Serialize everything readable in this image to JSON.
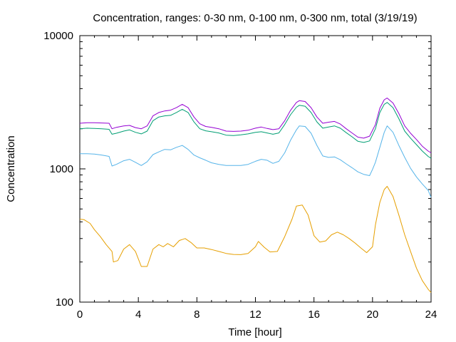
{
  "chart_data": {
    "type": "line",
    "title": "Concentration, ranges: 0-30 nm, 0-100 nm, 0-300 nm, total (3/19/19)",
    "xlabel": "Time [hour]",
    "ylabel": "Concentration",
    "xlim": [
      0,
      24
    ],
    "ylim": [
      100,
      10000
    ],
    "yscale": "log",
    "xticks": [
      0,
      4,
      8,
      12,
      16,
      20,
      24
    ],
    "xtick_labels": [
      "0",
      "4",
      "8",
      "12",
      "16",
      "20",
      "24"
    ],
    "yticks": [
      100,
      1000,
      10000
    ],
    "ytick_labels": [
      "100",
      "1000",
      "10000"
    ],
    "grid": false,
    "series": [
      {
        "color": "#e69f00",
        "x": [
          0,
          0.3,
          0.7,
          1.0,
          1.4,
          1.8,
          2.2,
          2.3,
          2.6,
          3.0,
          3.4,
          3.8,
          4.2,
          4.6,
          5.0,
          5.4,
          5.7,
          6.0,
          6.4,
          6.8,
          7.2,
          7.6,
          8.0,
          8.5,
          9.0,
          9.5,
          10.0,
          10.5,
          11.0,
          11.5,
          12.0,
          12.2,
          12.6,
          13.0,
          13.5,
          14.0,
          14.5,
          14.8,
          15.2,
          15.6,
          16.0,
          16.4,
          16.8,
          17.2,
          17.6,
          18.0,
          18.4,
          18.8,
          19.2,
          19.6,
          20.0,
          20.2,
          20.5,
          20.8,
          21.0,
          21.4,
          21.8,
          22.2,
          22.6,
          23.0,
          23.4,
          23.8,
          24.0
        ],
        "y": [
          420,
          415,
          390,
          350,
          310,
          270,
          240,
          200,
          205,
          250,
          270,
          240,
          185,
          185,
          250,
          270,
          260,
          275,
          260,
          290,
          300,
          280,
          255,
          255,
          248,
          240,
          232,
          228,
          227,
          232,
          260,
          285,
          258,
          238,
          240,
          310,
          420,
          525,
          535,
          450,
          315,
          282,
          288,
          320,
          335,
          320,
          300,
          278,
          255,
          235,
          260,
          380,
          560,
          700,
          740,
          620,
          450,
          320,
          240,
          180,
          145,
          125,
          118
        ]
      },
      {
        "color": "#56b4e9",
        "x": [
          0,
          0.5,
          1.0,
          1.5,
          2.0,
          2.2,
          2.5,
          3.0,
          3.4,
          3.8,
          4.2,
          4.6,
          5.0,
          5.4,
          5.8,
          6.2,
          6.6,
          7.0,
          7.4,
          7.8,
          8.2,
          8.6,
          9.0,
          9.5,
          10.0,
          10.5,
          11.0,
          11.5,
          12.0,
          12.4,
          12.8,
          13.2,
          13.6,
          14.0,
          14.4,
          14.8,
          15.0,
          15.4,
          15.8,
          16.2,
          16.6,
          17.0,
          17.4,
          17.8,
          18.2,
          18.6,
          19.0,
          19.4,
          19.8,
          20.0,
          20.2,
          20.5,
          20.8,
          21.0,
          21.4,
          21.8,
          22.2,
          22.6,
          23.0,
          23.4,
          23.8,
          24.0
        ],
        "y": [
          1300,
          1300,
          1290,
          1270,
          1240,
          1050,
          1080,
          1150,
          1180,
          1120,
          1060,
          1130,
          1280,
          1340,
          1400,
          1390,
          1450,
          1500,
          1400,
          1270,
          1210,
          1160,
          1110,
          1080,
          1060,
          1060,
          1060,
          1080,
          1140,
          1180,
          1160,
          1100,
          1140,
          1320,
          1640,
          1960,
          2100,
          2080,
          1850,
          1500,
          1250,
          1220,
          1230,
          1170,
          1090,
          1020,
          950,
          910,
          890,
          990,
          1120,
          1450,
          1880,
          2100,
          1880,
          1500,
          1220,
          1010,
          870,
          770,
          690,
          610
        ]
      },
      {
        "color": "#009e73",
        "x": [
          0,
          0.5,
          1.0,
          1.5,
          2.0,
          2.2,
          2.5,
          3.0,
          3.4,
          3.8,
          4.2,
          4.6,
          5.0,
          5.4,
          5.8,
          6.2,
          6.6,
          7.0,
          7.4,
          7.8,
          8.2,
          8.6,
          9.0,
          9.5,
          10.0,
          10.5,
          11.0,
          11.5,
          12.0,
          12.4,
          12.8,
          13.2,
          13.6,
          14.0,
          14.4,
          14.8,
          15.0,
          15.4,
          15.8,
          16.2,
          16.6,
          17.0,
          17.4,
          17.8,
          18.2,
          18.6,
          19.0,
          19.4,
          19.8,
          20.2,
          20.5,
          20.8,
          21.0,
          21.4,
          21.8,
          22.2,
          22.6,
          23.0,
          23.4,
          23.8,
          24.0
        ],
        "y": [
          2000,
          2020,
          2010,
          2000,
          1980,
          1820,
          1850,
          1920,
          1960,
          1880,
          1830,
          1920,
          2300,
          2450,
          2500,
          2520,
          2650,
          2800,
          2650,
          2250,
          2000,
          1930,
          1900,
          1860,
          1790,
          1780,
          1800,
          1830,
          1880,
          1900,
          1860,
          1820,
          1860,
          2150,
          2550,
          2900,
          3000,
          2950,
          2650,
          2250,
          2020,
          2060,
          2100,
          2020,
          1870,
          1740,
          1610,
          1580,
          1620,
          2000,
          2650,
          3050,
          3150,
          2880,
          2380,
          1920,
          1700,
          1520,
          1360,
          1240,
          1200
        ]
      },
      {
        "color": "#9400d3",
        "x": [
          0,
          0.5,
          1.0,
          1.5,
          2.0,
          2.2,
          2.5,
          3.0,
          3.4,
          3.8,
          4.2,
          4.6,
          5.0,
          5.4,
          5.8,
          6.2,
          6.6,
          7.0,
          7.4,
          7.8,
          8.2,
          8.6,
          9.0,
          9.5,
          10.0,
          10.5,
          11.0,
          11.5,
          12.0,
          12.4,
          12.8,
          13.2,
          13.6,
          14.0,
          14.4,
          14.8,
          15.0,
          15.4,
          15.8,
          16.2,
          16.6,
          17.0,
          17.4,
          17.8,
          18.2,
          18.6,
          19.0,
          19.4,
          19.8,
          20.2,
          20.5,
          20.8,
          21.0,
          21.4,
          21.8,
          22.2,
          22.6,
          23.0,
          23.4,
          23.8,
          24.0
        ],
        "y": [
          2200,
          2220,
          2220,
          2210,
          2200,
          2000,
          2050,
          2100,
          2120,
          2040,
          2000,
          2100,
          2500,
          2650,
          2720,
          2760,
          2880,
          3050,
          2880,
          2450,
          2180,
          2080,
          2050,
          2000,
          1920,
          1910,
          1920,
          1950,
          2020,
          2060,
          2010,
          1970,
          2000,
          2300,
          2750,
          3150,
          3250,
          3200,
          2880,
          2450,
          2200,
          2240,
          2270,
          2170,
          2000,
          1860,
          1730,
          1700,
          1760,
          2150,
          2850,
          3300,
          3400,
          3120,
          2600,
          2100,
          1850,
          1660,
          1480,
          1360,
          1320
        ]
      }
    ]
  }
}
